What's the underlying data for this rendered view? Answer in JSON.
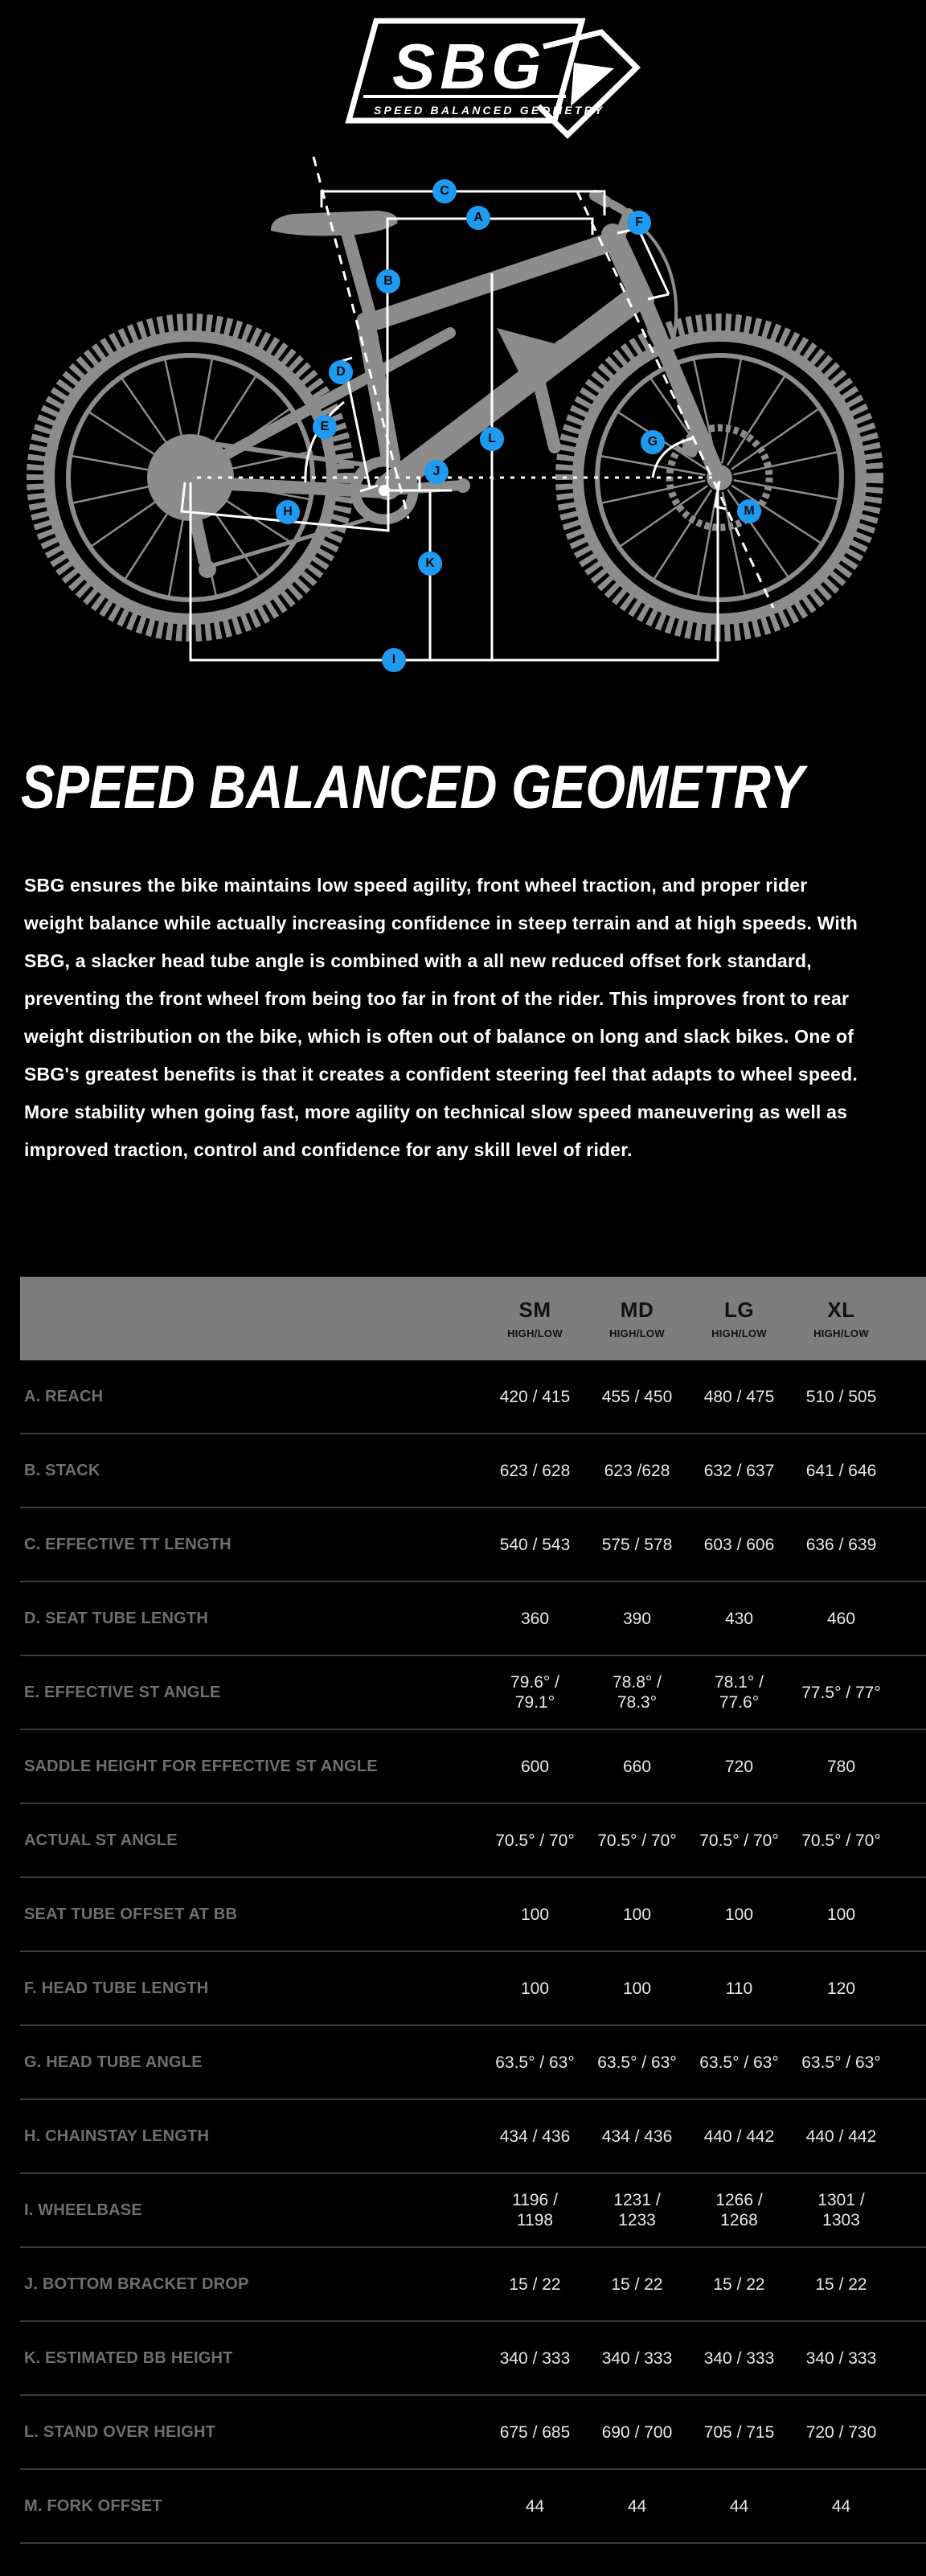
{
  "logo": {
    "text": "SBG",
    "subtext": "SPEED BALANCED GEOMETRY"
  },
  "heading": "SPEED BALANCED GEOMETRY",
  "paragraph": "SBG ensures the bike maintains low speed agility, front wheel traction, and proper rider weight balance while actually increasing confidence in steep terrain and at high speeds. With SBG, a slacker head tube angle is combined with a all new reduced offset fork standard, preventing the front wheel from being too far in front of the rider. This improves front to rear weight distribution on the bike, which is often out of balance on long and slack bikes. One of SBG's greatest benefits is that it creates a confident steering feel that adapts to wheel speed. More stability when going fast, more agility on technical slow speed maneuvering as well as improved traction, control and confidence for any skill level of rider.",
  "diagram": {
    "labels": [
      "A",
      "B",
      "C",
      "D",
      "E",
      "F",
      "G",
      "H",
      "I",
      "J",
      "K",
      "L",
      "M"
    ],
    "badge_color": "#1e9bf0"
  },
  "table": {
    "columns": [
      {
        "size": "SM",
        "sub": "HIGH/LOW"
      },
      {
        "size": "MD",
        "sub": "HIGH/LOW"
      },
      {
        "size": "LG",
        "sub": "HIGH/LOW"
      },
      {
        "size": "XL",
        "sub": "HIGH/LOW"
      }
    ],
    "rows": [
      {
        "label": "A. REACH",
        "values": [
          "420 / 415",
          "455 / 450",
          "480 / 475",
          "510 / 505"
        ]
      },
      {
        "label": "B. STACK",
        "values": [
          "623 / 628",
          "623 /628",
          "632 / 637",
          "641 / 646"
        ]
      },
      {
        "label": "C. EFFECTIVE TT LENGTH",
        "values": [
          "540 / 543",
          "575 / 578",
          "603 / 606",
          "636 / 639"
        ]
      },
      {
        "label": "D. SEAT TUBE LENGTH",
        "values": [
          "360",
          "390",
          "430",
          "460"
        ]
      },
      {
        "label": "E. EFFECTIVE ST ANGLE",
        "values": [
          "79.6° /\n79.1°",
          "78.8° /\n78.3°",
          "78.1° /\n77.6°",
          "77.5° / 77°"
        ]
      },
      {
        "label": "SADDLE HEIGHT FOR EFFECTIVE ST ANGLE",
        "values": [
          "600",
          "660",
          "720",
          "780"
        ]
      },
      {
        "label": "ACTUAL ST ANGLE",
        "values": [
          "70.5° / 70°",
          "70.5° / 70°",
          "70.5° / 70°",
          "70.5° / 70°"
        ]
      },
      {
        "label": "SEAT TUBE OFFSET AT BB",
        "values": [
          "100",
          "100",
          "100",
          "100"
        ]
      },
      {
        "label": "F. HEAD TUBE LENGTH",
        "values": [
          "100",
          "100",
          "110",
          "120"
        ]
      },
      {
        "label": "G. HEAD TUBE ANGLE",
        "values": [
          "63.5° / 63°",
          "63.5° / 63°",
          "63.5° / 63°",
          "63.5° / 63°"
        ]
      },
      {
        "label": "H. CHAINSTAY LENGTH",
        "values": [
          "434 / 436",
          "434 / 436",
          "440 / 442",
          "440 / 442"
        ]
      },
      {
        "label": "I. WHEELBASE",
        "values": [
          "1196 /\n1198",
          "1231 /\n1233",
          "1266 /\n1268",
          "1301 /\n1303"
        ]
      },
      {
        "label": "J. BOTTOM BRACKET DROP",
        "values": [
          "15 / 22",
          "15 / 22",
          "15 / 22",
          "15 / 22"
        ]
      },
      {
        "label": "K. ESTIMATED BB HEIGHT",
        "values": [
          "340 / 333",
          "340 / 333",
          "340 / 333",
          "340 / 333"
        ]
      },
      {
        "label": "L. STAND OVER HEIGHT",
        "values": [
          "675 / 685",
          "690 / 700",
          "705 / 715",
          "720 / 730"
        ]
      },
      {
        "label": "M. FORK OFFSET",
        "values": [
          "44",
          "44",
          "44",
          "44"
        ]
      }
    ]
  },
  "colors": {
    "background": "#000000",
    "accent_blue": "#1e9bf0",
    "header_bg": "#7d7d7d",
    "row_label": "#6f6f6f",
    "value_text": "#e8e8e8",
    "divider": "#3a3a3a",
    "silhouette": "#8c8c8c",
    "measure_line": "#ffffff"
  }
}
